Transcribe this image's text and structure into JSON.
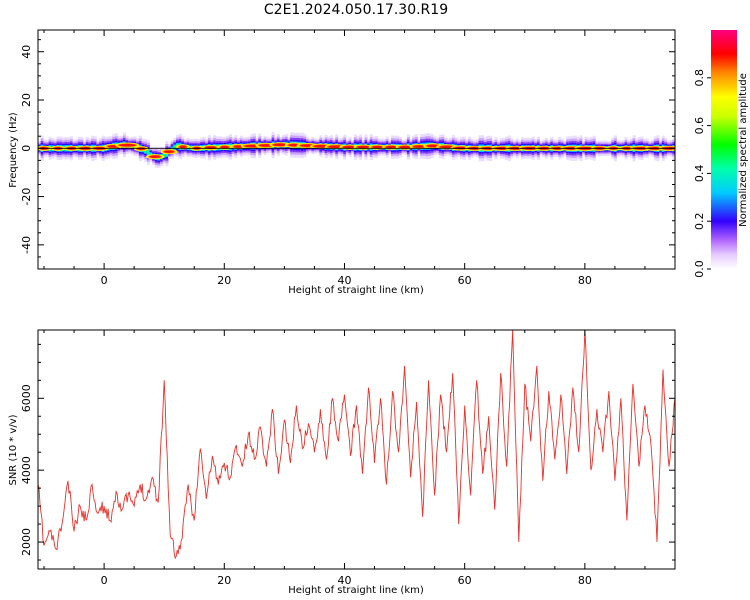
{
  "title": "C2E1.2024.050.17.30.R19",
  "chart_data": [
    {
      "type": "heatmap",
      "xlabel": "Height of straight line (km)",
      "ylabel": "Frequency (Hz)",
      "xlim": [
        -11,
        95
      ],
      "ylim": [
        -50,
        49
      ],
      "xticks": [
        0,
        20,
        40,
        60,
        80
      ],
      "yticks": [
        -40,
        -20,
        0,
        20,
        40
      ],
      "colorbar": {
        "label": "Normalized spectral amplitude",
        "range": [
          0,
          1
        ],
        "ticks": [
          0.0,
          0.2,
          0.4,
          0.6,
          0.8
        ],
        "colormap": "rainbow (white-violet-blue-cyan-green-yellow-orange-red-magenta)"
      },
      "ridge_frequency": {
        "x": [
          -11,
          -5,
          0,
          3,
          5,
          7,
          8,
          9,
          10,
          11,
          12,
          15,
          20,
          25,
          30,
          35,
          40,
          45,
          50,
          55,
          60,
          65,
          70,
          75,
          80,
          85,
          90,
          95
        ],
        "y": [
          0,
          0,
          0,
          1.5,
          1,
          -1,
          -3,
          -4,
          -3,
          -1,
          1,
          0,
          0.5,
          1,
          1.5,
          1,
          0.5,
          0.5,
          0.5,
          1,
          0,
          0,
          0,
          0,
          0,
          0,
          0,
          0
        ]
      }
    },
    {
      "type": "line",
      "xlabel": "Height of straight line (km)",
      "ylabel": "SNR (10 * v/v)",
      "xlim": [
        -11,
        95
      ],
      "ylim": [
        1250,
        7900
      ],
      "xticks": [
        0,
        20,
        40,
        60,
        80
      ],
      "yticks": [
        2000,
        4000,
        6000
      ],
      "series": [
        {
          "color": "#e8302a",
          "x": [
            -11,
            -10,
            -9,
            -8,
            -7,
            -6,
            -5,
            -4,
            -3,
            -2,
            -1,
            0,
            1,
            2,
            3,
            4,
            5,
            6,
            7,
            8,
            9,
            10,
            11,
            12,
            13,
            14,
            15,
            16,
            17,
            18,
            19,
            20,
            21,
            22,
            23,
            24,
            25,
            26,
            27,
            28,
            29,
            30,
            31,
            32,
            33,
            34,
            35,
            36,
            37,
            38,
            39,
            40,
            41,
            42,
            43,
            44,
            45,
            46,
            47,
            48,
            49,
            50,
            51,
            52,
            53,
            54,
            55,
            56,
            57,
            58,
            59,
            60,
            61,
            62,
            63,
            64,
            65,
            66,
            67,
            68,
            69,
            70,
            71,
            72,
            73,
            74,
            75,
            76,
            77,
            78,
            79,
            80,
            81,
            82,
            83,
            84,
            85,
            86,
            87,
            88,
            89,
            90,
            91,
            92,
            93,
            94,
            95
          ],
          "y": [
            3600,
            1900,
            2300,
            1800,
            2500,
            3700,
            2300,
            3000,
            2600,
            3600,
            2800,
            3000,
            2600,
            3400,
            2900,
            3300,
            3000,
            3600,
            3200,
            3800,
            3100,
            6500,
            2200,
            1600,
            2100,
            3600,
            2600,
            4600,
            3200,
            4400,
            3600,
            4200,
            3800,
            4700,
            4100,
            5000,
            4300,
            5200,
            4100,
            5700,
            3900,
            5400,
            4200,
            5800,
            4600,
            5300,
            4500,
            5700,
            4300,
            6000,
            4800,
            6100,
            4400,
            5800,
            3900,
            6300,
            4200,
            6000,
            3600,
            6200,
            4500,
            6900,
            3800,
            5900,
            2700,
            6500,
            3300,
            6100,
            4500,
            6700,
            2500,
            5800,
            3300,
            6500,
            3900,
            5500,
            2900,
            6700,
            4100,
            7900,
            2000,
            6400,
            4800,
            6900,
            3700,
            6200,
            4300,
            6100,
            3900,
            6300,
            4500,
            7900,
            4000,
            5700,
            4500,
            6200,
            3700,
            6000,
            2600,
            6400,
            4100,
            5800,
            4700,
            2000,
            6800,
            4100,
            6000
          ]
        }
      ]
    }
  ]
}
